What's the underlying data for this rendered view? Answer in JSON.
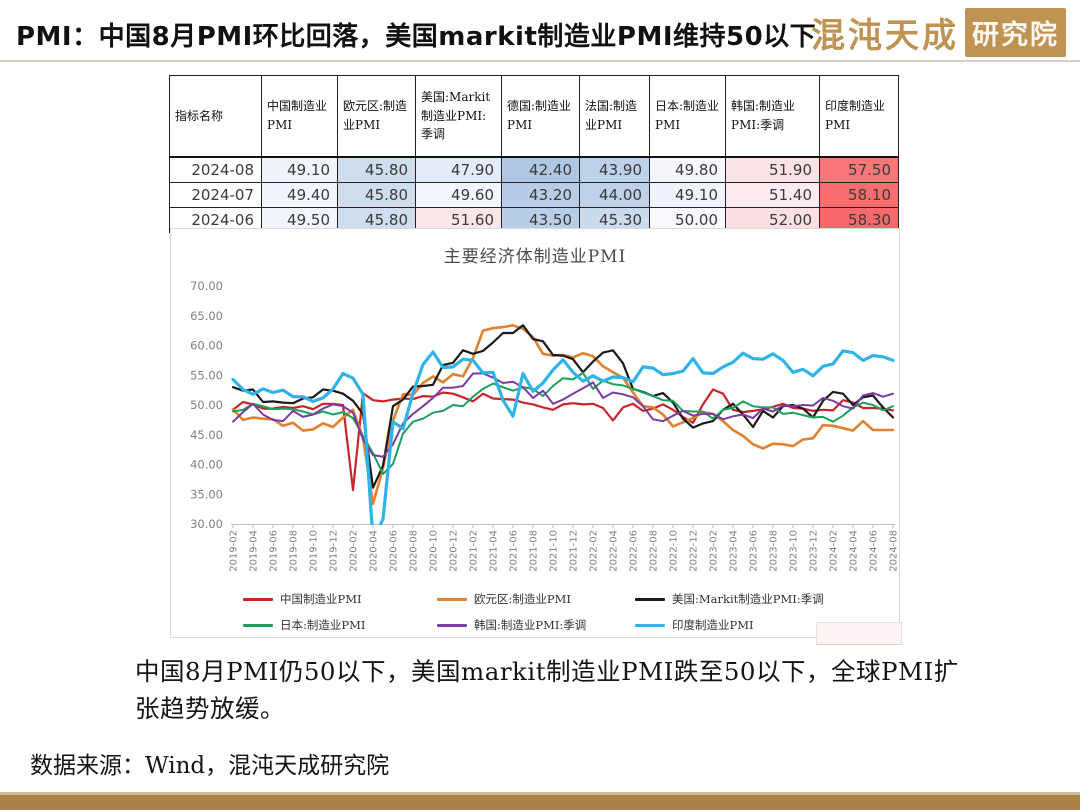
{
  "page": {
    "title": "PMI：中国8月PMI环比回落，美国markit制造业PMI维持50以下",
    "logo_text": "混沌天成",
    "logo_seal_text": "研究院",
    "commentary": "中国8月PMI仍50以下，美国markit制造业PMI跌至50以下，全球PMI扩张趋势放缓。",
    "source_text": "数据来源：Wind，混沌天成研究院"
  },
  "colors": {
    "accent_gold": "#bf9351",
    "footer_bar": "#ac8148",
    "divider": "#d8d2c6",
    "chart_border": "#d9d9d9",
    "axis_text": "#808080",
    "axis_line": "#bfbfbf"
  },
  "table": {
    "header": [
      "指标名称",
      "中国制造业PMI",
      "欧元区:制造业PMI",
      "美国:Markit制造业PMI:季调",
      "德国:制造业PMI",
      "法国:制造业PMI",
      "日本:制造业PMI",
      "韩国:制造业PMI:季调",
      "印度制造业PMI"
    ],
    "rows": [
      {
        "date": "2024-08",
        "values": [
          49.1,
          45.8,
          47.9,
          42.4,
          43.9,
          49.8,
          51.9,
          57.5
        ]
      },
      {
        "date": "2024-07",
        "values": [
          49.4,
          45.8,
          49.6,
          43.2,
          44.0,
          49.1,
          51.4,
          58.1
        ]
      },
      {
        "date": "2024-06",
        "values": [
          49.5,
          45.8,
          51.6,
          43.5,
          45.3,
          50.0,
          52.0,
          58.3
        ]
      }
    ],
    "color_scale": {
      "min": 42.4,
      "mid": 50.5,
      "max": 58.3,
      "min_color": "#afc7e3",
      "mid_color": "#fcfcff",
      "max_color": "#f8696b"
    }
  },
  "chart_data": {
    "type": "line",
    "title": "主要经济体制造业PMI",
    "xlabel": "",
    "ylabel": "",
    "ylim": [
      30,
      70
    ],
    "y_ticks": [
      70,
      65,
      60,
      55,
      50,
      45,
      40,
      35,
      30
    ],
    "x_tick_step": 2,
    "grid": false,
    "legend_position": "bottom",
    "x": [
      "2019-02",
      "2019-03",
      "2019-04",
      "2019-05",
      "2019-06",
      "2019-07",
      "2019-08",
      "2019-09",
      "2019-10",
      "2019-11",
      "2019-12",
      "2020-01",
      "2020-02",
      "2020-03",
      "2020-04",
      "2020-05",
      "2020-06",
      "2020-07",
      "2020-08",
      "2020-09",
      "2020-10",
      "2020-11",
      "2020-12",
      "2021-01",
      "2021-02",
      "2021-03",
      "2021-04",
      "2021-05",
      "2021-06",
      "2021-07",
      "2021-08",
      "2021-09",
      "2021-10",
      "2021-11",
      "2021-12",
      "2022-01",
      "2022-02",
      "2022-03",
      "2022-04",
      "2022-05",
      "2022-06",
      "2022-07",
      "2022-08",
      "2022-09",
      "2022-10",
      "2022-11",
      "2022-12",
      "2023-01",
      "2023-02",
      "2023-03",
      "2023-04",
      "2023-05",
      "2023-06",
      "2023-07",
      "2023-08",
      "2023-09",
      "2023-10",
      "2023-11",
      "2023-12",
      "2024-01",
      "2024-02",
      "2024-03",
      "2024-04",
      "2024-05",
      "2024-06",
      "2024-07",
      "2024-08"
    ],
    "series": [
      {
        "name": "中国制造业PMI",
        "color": "#c9242b",
        "width": 2.2,
        "values": [
          49.2,
          50.5,
          50.1,
          49.4,
          49.4,
          49.7,
          49.5,
          49.8,
          49.3,
          50.2,
          50.2,
          50.0,
          35.7,
          52.0,
          50.8,
          50.6,
          50.9,
          51.1,
          51.0,
          51.5,
          51.4,
          52.1,
          51.9,
          51.3,
          50.6,
          51.9,
          51.1,
          51.0,
          50.9,
          50.4,
          50.1,
          49.6,
          49.2,
          50.1,
          50.3,
          50.1,
          50.2,
          49.5,
          47.4,
          49.6,
          50.2,
          49.0,
          49.4,
          50.1,
          49.2,
          48.0,
          47.0,
          50.1,
          52.6,
          51.9,
          49.2,
          48.8,
          49.0,
          49.3,
          49.7,
          50.2,
          49.5,
          49.4,
          49.0,
          49.2,
          49.1,
          50.8,
          50.4,
          49.5,
          49.5,
          49.4,
          49.1
        ]
      },
      {
        "name": "欧元区:制造业PMI",
        "color": "#e0812f",
        "width": 2.6,
        "values": [
          49.3,
          47.5,
          47.9,
          47.7,
          47.6,
          46.5,
          47.0,
          45.7,
          45.9,
          46.9,
          46.3,
          47.9,
          49.2,
          44.5,
          33.4,
          39.4,
          47.4,
          51.8,
          51.7,
          53.7,
          54.8,
          53.8,
          55.2,
          54.8,
          57.9,
          62.5,
          62.9,
          63.1,
          63.4,
          62.8,
          61.4,
          58.6,
          58.3,
          58.4,
          58.0,
          58.7,
          58.2,
          56.5,
          55.5,
          54.6,
          52.1,
          49.8,
          49.6,
          48.4,
          46.4,
          47.1,
          47.8,
          48.8,
          48.5,
          47.3,
          45.8,
          44.8,
          43.4,
          42.7,
          43.5,
          43.4,
          43.1,
          44.2,
          44.4,
          46.6,
          46.5,
          46.1,
          45.7,
          47.3,
          45.8,
          45.8,
          45.8
        ]
      },
      {
        "name": "美国:Markit制造业PMI:季调",
        "color": "#1a1a1a",
        "width": 2.2,
        "values": [
          53.0,
          52.4,
          52.6,
          50.5,
          50.6,
          50.4,
          50.3,
          51.1,
          51.3,
          52.6,
          52.4,
          51.9,
          50.7,
          48.5,
          36.1,
          39.8,
          49.8,
          50.9,
          53.1,
          53.2,
          53.4,
          56.7,
          57.1,
          59.2,
          58.6,
          59.1,
          60.5,
          62.1,
          62.1,
          63.4,
          61.1,
          60.7,
          58.4,
          58.3,
          57.7,
          55.5,
          57.3,
          58.8,
          59.2,
          57.0,
          52.7,
          52.2,
          51.5,
          52.0,
          50.4,
          47.7,
          46.2,
          46.9,
          47.3,
          49.2,
          50.2,
          48.4,
          46.3,
          49.0,
          47.9,
          49.8,
          50.0,
          49.4,
          47.9,
          50.7,
          52.2,
          51.9,
          50.0,
          51.3,
          51.6,
          49.6,
          47.9
        ]
      },
      {
        "name": "日本:制造业PMI",
        "color": "#1ca15c",
        "width": 2,
        "values": [
          48.9,
          49.2,
          50.2,
          49.8,
          49.3,
          49.4,
          49.3,
          48.9,
          48.4,
          48.9,
          48.4,
          48.8,
          47.8,
          44.8,
          41.9,
          38.4,
          40.1,
          45.2,
          47.2,
          47.7,
          48.7,
          49.0,
          50.0,
          49.8,
          51.4,
          52.7,
          53.6,
          53.0,
          52.4,
          53.0,
          52.7,
          51.5,
          53.2,
          54.5,
          54.3,
          55.4,
          52.7,
          54.1,
          53.5,
          53.3,
          52.7,
          52.1,
          51.5,
          50.8,
          50.7,
          49.0,
          48.9,
          48.9,
          47.7,
          49.2,
          49.5,
          50.6,
          49.8,
          49.6,
          49.6,
          48.5,
          48.7,
          48.3,
          47.9,
          48.0,
          47.2,
          48.2,
          49.6,
          50.4,
          50.0,
          49.1,
          49.8
        ]
      },
      {
        "name": "韩国:制造业PMI:季调",
        "color": "#7a3ca0",
        "width": 2,
        "values": [
          47.2,
          48.8,
          50.2,
          48.4,
          47.5,
          47.3,
          49.0,
          48.0,
          48.4,
          49.4,
          50.1,
          49.8,
          48.7,
          44.2,
          41.6,
          41.3,
          43.4,
          46.9,
          48.5,
          49.8,
          51.2,
          52.9,
          52.9,
          53.2,
          55.3,
          55.3,
          54.6,
          53.7,
          53.9,
          53.0,
          51.2,
          52.4,
          50.2,
          50.9,
          51.9,
          52.8,
          53.8,
          51.2,
          52.1,
          51.8,
          51.3,
          49.8,
          47.6,
          47.3,
          48.2,
          49.0,
          48.2,
          48.5,
          48.5,
          47.6,
          48.1,
          48.4,
          47.8,
          49.4,
          48.9,
          49.9,
          49.8,
          50.0,
          49.9,
          51.2,
          50.7,
          49.8,
          49.4,
          51.6,
          52.0,
          51.4,
          51.9
        ]
      },
      {
        "name": "印度制造业PMI",
        "color": "#2fb3e8",
        "width": 3.2,
        "values": [
          54.3,
          52.6,
          51.8,
          52.7,
          52.1,
          52.5,
          51.4,
          51.4,
          50.6,
          51.2,
          52.7,
          55.3,
          54.5,
          51.8,
          27.4,
          30.8,
          47.2,
          46.0,
          52.0,
          56.8,
          58.9,
          56.3,
          56.4,
          57.7,
          57.5,
          55.4,
          55.5,
          50.8,
          48.1,
          55.3,
          52.3,
          53.7,
          55.9,
          57.6,
          55.5,
          54.0,
          54.9,
          54.0,
          54.7,
          54.6,
          53.9,
          56.4,
          56.2,
          55.1,
          55.3,
          55.7,
          57.8,
          55.4,
          55.3,
          56.4,
          57.2,
          58.7,
          57.8,
          57.7,
          58.6,
          57.5,
          55.5,
          56.0,
          54.9,
          56.5,
          56.9,
          59.1,
          58.8,
          57.5,
          58.3,
          58.1,
          57.5
        ]
      }
    ]
  }
}
